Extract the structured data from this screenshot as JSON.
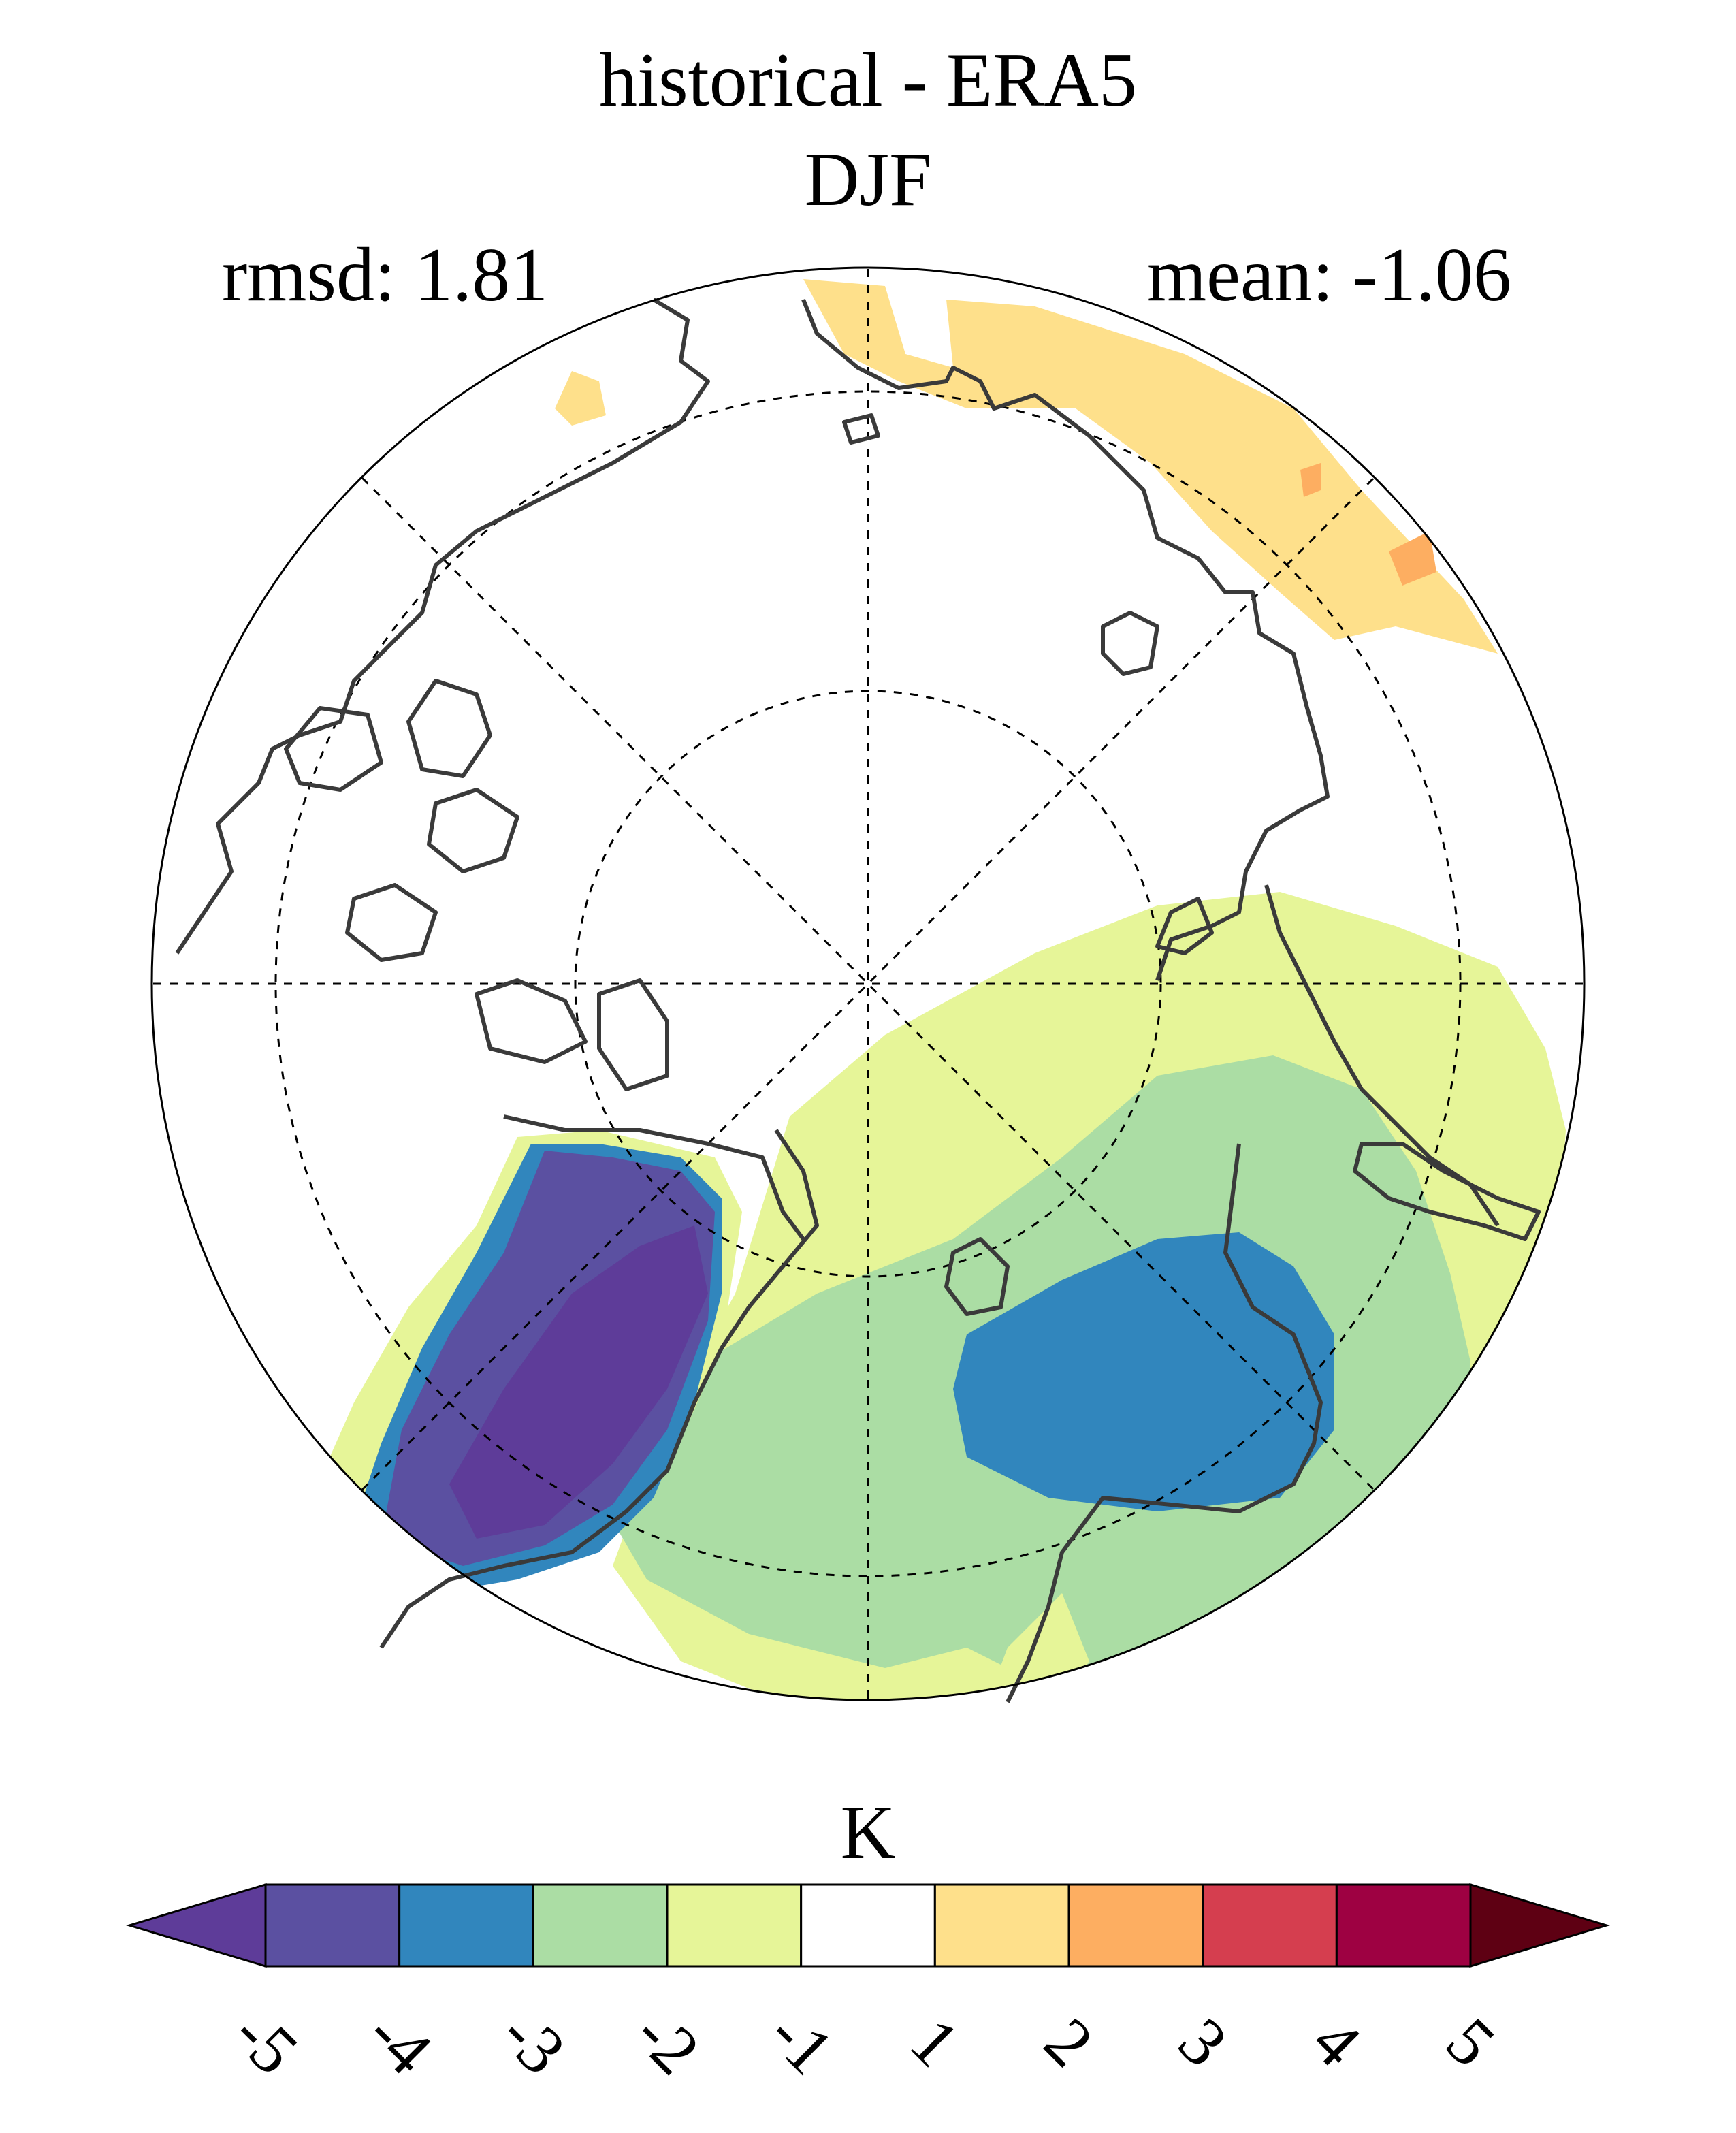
{
  "title": "historical - ERA5",
  "season": "DJF",
  "rmsd_label": "rmsd: 1.81",
  "mean_label": "mean: -1.06",
  "colorbar": {
    "unit": "K",
    "ticks": [
      "-5",
      "-4",
      "-3",
      "-2",
      "-1",
      "1",
      "2",
      "3",
      "4",
      "5"
    ],
    "colors": [
      "#5e3c99",
      "#5b50a1",
      "#3186bd",
      "#abdda4",
      "#e6f598",
      "#ffffff",
      "#fee08b",
      "#fdae61",
      "#d53e4f",
      "#9e0142",
      "#5e0013"
    ]
  },
  "map": {
    "projection": "north-polar-stereographic",
    "variable": "temperature difference",
    "gridlines": "dashed"
  }
}
